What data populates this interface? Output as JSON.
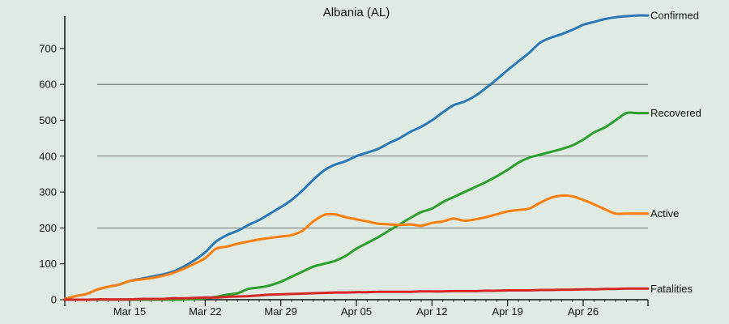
{
  "chart_data": {
    "type": "line",
    "title": "Albania (AL)",
    "xlabel": "",
    "ylabel": "",
    "ylim": [
      0,
      790
    ],
    "yticks": [
      0,
      100,
      200,
      300,
      400,
      500,
      600,
      700
    ],
    "gridlines": [
      200,
      400,
      600
    ],
    "x_start_date": "2020-03-09",
    "x_end_date": "2020-05-02",
    "xticks": [
      {
        "label": "Mar 15",
        "day": 6
      },
      {
        "label": "Mar 22",
        "day": 13
      },
      {
        "label": "Mar 29",
        "day": 20
      },
      {
        "label": "Apr 05",
        "day": 27
      },
      {
        "label": "Apr 12",
        "day": 34
      },
      {
        "label": "Apr 19",
        "day": 41
      },
      {
        "label": "Apr 26",
        "day": 48
      }
    ],
    "days": [
      0,
      1,
      2,
      3,
      4,
      5,
      6,
      7,
      8,
      9,
      10,
      11,
      12,
      13,
      14,
      15,
      16,
      17,
      18,
      19,
      20,
      21,
      22,
      23,
      24,
      25,
      26,
      27,
      28,
      29,
      30,
      31,
      32,
      33,
      34,
      35,
      36,
      37,
      38,
      39,
      40,
      41,
      42,
      43,
      44,
      45,
      46,
      47,
      48,
      49,
      50,
      51,
      52,
      53,
      54
    ],
    "series": [
      {
        "name": "Confirmed",
        "color": "#2a78b5",
        "values": [
          2,
          10,
          16,
          28,
          36,
          42,
          52,
          58,
          64,
          70,
          78,
          92,
          110,
          132,
          162,
          180,
          192,
          208,
          222,
          240,
          258,
          278,
          304,
          334,
          360,
          376,
          386,
          400,
          410,
          420,
          436,
          450,
          468,
          482,
          500,
          522,
          542,
          552,
          568,
          590,
          614,
          640,
          664,
          688,
          716,
          730,
          740,
          752,
          766,
          774,
          782,
          787,
          790,
          792,
          792
        ]
      },
      {
        "name": "Recovered",
        "color": "#2ca02c",
        "values": [
          0,
          0,
          0,
          0,
          0,
          0,
          0,
          0,
          0,
          0,
          0,
          0,
          2,
          4,
          8,
          14,
          18,
          30,
          34,
          40,
          50,
          64,
          78,
          92,
          100,
          108,
          122,
          142,
          158,
          174,
          192,
          210,
          228,
          244,
          254,
          272,
          286,
          300,
          314,
          328,
          344,
          362,
          382,
          396,
          404,
          412,
          420,
          430,
          446,
          466,
          480,
          500,
          520,
          520,
          520
        ]
      },
      {
        "name": "Active",
        "color": "#ff7f0e",
        "values": [
          2,
          10,
          16,
          28,
          36,
          42,
          52,
          56,
          60,
          66,
          74,
          86,
          100,
          116,
          142,
          148,
          156,
          162,
          168,
          172,
          176,
          180,
          192,
          218,
          236,
          238,
          230,
          224,
          218,
          212,
          210,
          208,
          210,
          206,
          214,
          218,
          226,
          220,
          224,
          230,
          238,
          246,
          250,
          254,
          270,
          284,
          290,
          288,
          278,
          266,
          252,
          240,
          240,
          240,
          240
        ]
      },
      {
        "name": "Fatalities",
        "color": "#d62728",
        "values": [
          0,
          0,
          0,
          1,
          1,
          1,
          1,
          2,
          2,
          2,
          4,
          4,
          5,
          6,
          6,
          8,
          9,
          10,
          12,
          14,
          15,
          16,
          17,
          18,
          19,
          20,
          20,
          21,
          21,
          22,
          22,
          22,
          22,
          23,
          23,
          23,
          24,
          24,
          24,
          25,
          25,
          26,
          26,
          26,
          27,
          27,
          28,
          28,
          29,
          29,
          30,
          30,
          31,
          31,
          31
        ]
      }
    ]
  }
}
